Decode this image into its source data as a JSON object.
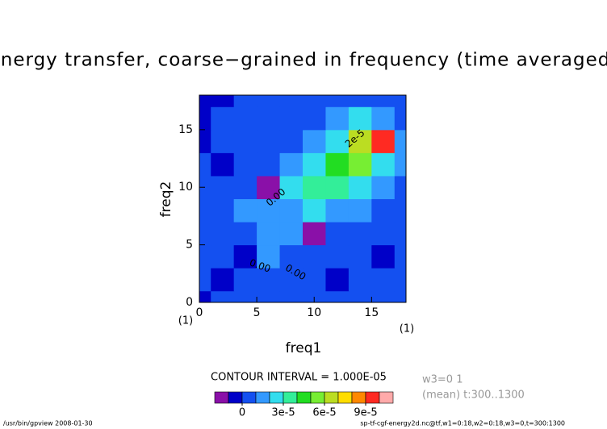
{
  "chart_data": {
    "type": "contour",
    "title": "energy transfer, coarse−grained in frequency (time averaged)",
    "xlabel": "freq1",
    "ylabel": "freq2",
    "xunit": "(1)",
    "yunit": "(1)",
    "x": [
      0,
      2,
      4,
      6,
      8,
      10,
      12,
      14,
      16,
      18
    ],
    "y": [
      0,
      2,
      4,
      6,
      8,
      10,
      12,
      14,
      16,
      18
    ],
    "z": [
      [
        -5e-06,
        5e-06,
        5e-06,
        5e-06,
        5e-06,
        5e-06,
        5e-06,
        5e-06,
        5e-06,
        5e-06
      ],
      [
        5e-06,
        -5e-06,
        5e-06,
        5e-06,
        5e-06,
        5e-06,
        -5e-06,
        5e-06,
        5e-06,
        5e-06
      ],
      [
        5e-06,
        5e-06,
        -5e-06,
        1.5e-05,
        5e-06,
        5e-06,
        5e-06,
        5e-06,
        -5e-06,
        5e-06
      ],
      [
        5e-06,
        5e-06,
        5e-06,
        1.5e-05,
        1.5e-05,
        -1.5e-05,
        5e-06,
        5e-06,
        5e-06,
        5e-06
      ],
      [
        5e-06,
        5e-06,
        1.5e-05,
        1.5e-05,
        1.5e-05,
        2.5e-05,
        1.5e-05,
        1.5e-05,
        5e-06,
        5e-06
      ],
      [
        5e-06,
        5e-06,
        5e-06,
        -1.5e-05,
        2.5e-05,
        3.5e-05,
        3.5e-05,
        2.5e-05,
        1.5e-05,
        5e-06
      ],
      [
        5e-06,
        -5e-06,
        5e-06,
        5e-06,
        1.5e-05,
        2.5e-05,
        4.5e-05,
        5.5e-05,
        2.5e-05,
        1.5e-05
      ],
      [
        -5e-06,
        5e-06,
        5e-06,
        5e-06,
        5e-06,
        1.5e-05,
        2.5e-05,
        6.5e-05,
        9.5e-05,
        1.5e-05
      ],
      [
        -5e-06,
        5e-06,
        5e-06,
        5e-06,
        5e-06,
        5e-06,
        1.5e-05,
        2.5e-05,
        1.5e-05,
        5e-06
      ],
      [
        -5e-06,
        -5e-06,
        5e-06,
        5e-06,
        5e-06,
        5e-06,
        5e-06,
        5e-06,
        5e-06,
        5e-06
      ]
    ],
    "xlim": [
      0,
      18
    ],
    "ylim": [
      0,
      18
    ],
    "xticks": [
      0,
      5,
      10,
      15
    ],
    "yticks": [
      0,
      5,
      10,
      15
    ],
    "levels": [
      -1e-05,
      0,
      1e-05,
      2e-05,
      3e-05,
      4e-05,
      5e-05,
      6e-05,
      7e-05,
      8e-05,
      9e-05,
      0.0001
    ],
    "colors": [
      "#8a10a8",
      "#0000c8",
      "#1450f0",
      "#3399ff",
      "#33ddee",
      "#33ee99",
      "#22dd22",
      "#77ee33",
      "#bbdd22",
      "#ffdd00",
      "#ff8800",
      "#ff2a22",
      "#ffaaaa"
    ],
    "colorbar_ticks": [
      0,
      {
        "value": 3e-05,
        "label": "3e-5"
      },
      {
        "value": 6e-05,
        "label": "6e-5"
      },
      {
        "value": 9e-05,
        "label": "9e-5"
      }
    ],
    "contour_interval": "CONTOUR INTERVAL = 1.000E-05",
    "contour_labels": [
      "2e-5",
      "0.00",
      "0.00",
      "0.00"
    ],
    "info": [
      "w3=0 1",
      "(mean) t:300..1300"
    ],
    "footer_left": "/usr/bin/gpview  2008-01-30",
    "footer_right": "sp-tf-cgf-energy2d.nc@tf,w1=0:18,w2=0:18,w3=0,t=300:1300"
  }
}
